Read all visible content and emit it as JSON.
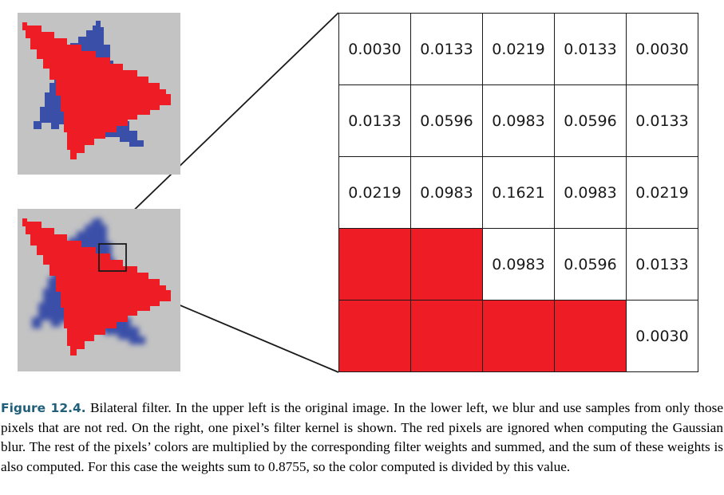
{
  "kernel": {
    "rows": [
      [
        {
          "value": "0.0030",
          "masked": false
        },
        {
          "value": "0.0133",
          "masked": false
        },
        {
          "value": "0.0219",
          "masked": false
        },
        {
          "value": "0.0133",
          "masked": false
        },
        {
          "value": "0.0030",
          "masked": false
        }
      ],
      [
        {
          "value": "0.0133",
          "masked": false
        },
        {
          "value": "0.0596",
          "masked": false
        },
        {
          "value": "0.0983",
          "masked": false
        },
        {
          "value": "0.0596",
          "masked": false
        },
        {
          "value": "0.0133",
          "masked": false
        }
      ],
      [
        {
          "value": "0.0219",
          "masked": false
        },
        {
          "value": "0.0983",
          "masked": false
        },
        {
          "value": "0.1621",
          "masked": false
        },
        {
          "value": "0.0983",
          "masked": false
        },
        {
          "value": "0.0219",
          "masked": false
        }
      ],
      [
        {
          "value": "",
          "masked": true
        },
        {
          "value": "",
          "masked": true
        },
        {
          "value": "0.0983",
          "masked": false
        },
        {
          "value": "0.0596",
          "masked": false
        },
        {
          "value": "0.0133",
          "masked": false
        }
      ],
      [
        {
          "value": "",
          "masked": true
        },
        {
          "value": "",
          "masked": true
        },
        {
          "value": "",
          "masked": true
        },
        {
          "value": "",
          "masked": true
        },
        {
          "value": "0.0030",
          "masked": false
        }
      ]
    ]
  },
  "colors": {
    "red": "#ee1c25",
    "blue": "#3a4fa8",
    "background_gray": "#c3c3c3",
    "caption_label": "#1f5f7a"
  },
  "caption": {
    "label": "Figure 12.4.",
    "text": " Bilateral filter. In the upper left is the original image. In the lower left, we blur and use samples from only those pixels that are not red. On the right, one pixel’s filter kernel is shown. The red pixels are ignored when computing the Gaussian blur. The rest of the pixels’ colors are multiplied by the corresponding filter weights and summed, and the sum of these weights is also computed. For this case the weights sum to 0.8755, so the color computed is divided by this value."
  }
}
